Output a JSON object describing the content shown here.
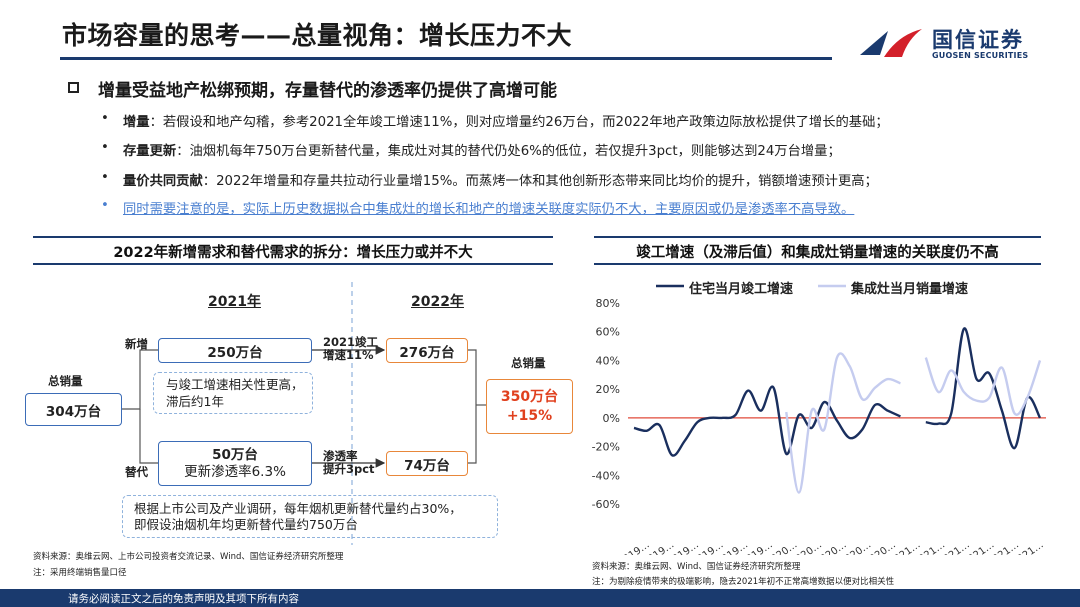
{
  "header": {
    "title": "市场容量的思考——总量视角：增长压力不大",
    "logo_cn": "国信证券",
    "logo_en": "GUOSEN SECURITIES"
  },
  "headline": "增量受益地产松绑预期，存量替代的渗透率仍提供了高增可能",
  "bullets": [
    {
      "bold": "增量",
      "text": "：若假设和地产勾稽，参考2021全年竣工增速11%，则对应增量约26万台，而2022年地产政策边际放松提供了增长的基础；"
    },
    {
      "bold": "存量更新",
      "text": "：油烟机每年750万台更新替代量，集成灶对其的替代仍处6%的低位，若仅提升3pct，则能够达到24万台增量；"
    },
    {
      "bold": "量价共同贡献",
      "text": "：2022年增量和存量共拉动行业量增15%。而蒸烤一体和其他创新形态带来同比均价的提升，销额增速预计更高；"
    },
    {
      "bold": "",
      "text": "同时需要注意的是，实际上历史数据拟合中集成灶的增长和地产的增速关联度实际仍不大，主要原因或仍是渗透率不高导致。"
    }
  ],
  "left": {
    "title": "2022年新增需求和替代需求的拆分：增长压力或并不大",
    "year_a": "2021年",
    "year_b": "2022年",
    "total_label": "总销量",
    "total_value": "304万台",
    "new_label": "新增",
    "new_value": "250万台",
    "new_arrow_1": "2021竣工",
    "new_arrow_2": "增速11%",
    "new_2022": "276万台",
    "note_1a": "与竣工增速相关性更高，",
    "note_1b": "滞后约1年",
    "replace_label": "替代",
    "replace_value": "50万台",
    "replace_sub": "更新渗透率6.3%",
    "replace_arrow_1": "渗透率",
    "replace_arrow_2": "提升3pct",
    "replace_2022": "74万台",
    "total2_label": "总销量",
    "total2_value": "350万台",
    "total2_growth": "+15%",
    "note_2a": "根据上市公司及产业调研，每年烟机更新替代量约占30%，",
    "note_2b": "即假设油烟机年均更新替代量约750万台",
    "source": "资料来源：奥维云网、上市公司投资者交流记录、Wind、国信证券经济研究所整理",
    "note": "注：采用终端销售量口径"
  },
  "right": {
    "title": "竣工增速（及滞后值）和集成灶销量增速的关联度仍不高",
    "source": "资料来源：奥维云网、Wind、国信证券经济研究所整理",
    "note": "注：为剔除疫情带来的极端影响，隐去2021年初不正常高增数据以便对比相关性"
  },
  "chart_data": {
    "type": "line",
    "title": "",
    "xlabel": "",
    "ylabel": "",
    "ylim": [
      -0.6,
      0.8
    ],
    "yticks": [
      "80%",
      "60%",
      "40%",
      "20%",
      "0%",
      "-20%",
      "-40%",
      "-60%"
    ],
    "x_tick_labels": [
      "2019…",
      "2019…",
      "2019…",
      "2019…",
      "2019…",
      "2019…",
      "2020…",
      "2020…",
      "2020…",
      "2020…",
      "2020…",
      "2021…",
      "2021…",
      "2021…",
      "2021…",
      "2021…",
      "2021…"
    ],
    "legend_position": "top",
    "series": [
      {
        "name": "住宅当月竣工增速",
        "color": "#1a2f5e",
        "values": [
          -0.07,
          -0.09,
          -0.05,
          -0.26,
          -0.16,
          -0.03,
          0.0,
          0.0,
          0.02,
          0.19,
          0.05,
          0.21,
          -0.25,
          0.02,
          -0.07,
          0.11,
          -0.02,
          -0.14,
          -0.08,
          0.09,
          0.05,
          0.01,
          null,
          -0.03,
          -0.04,
          0.03,
          0.62,
          0.27,
          0.31,
          0.05,
          -0.21,
          0.14,
          0.0
        ]
      },
      {
        "name": "集成灶当月销量增速",
        "color": "#c5ccef",
        "values": [
          null,
          null,
          null,
          null,
          null,
          null,
          null,
          null,
          null,
          null,
          null,
          null,
          0.04,
          -0.52,
          0.05,
          -0.08,
          0.42,
          0.36,
          0.13,
          0.21,
          0.27,
          0.24,
          null,
          0.42,
          0.18,
          0.33,
          0.18,
          0.12,
          0.14,
          0.35,
          0.03,
          0.14,
          0.4
        ]
      }
    ]
  },
  "footer": {
    "text": "请务必阅读正文之后的免责声明及其项下所有内容"
  }
}
